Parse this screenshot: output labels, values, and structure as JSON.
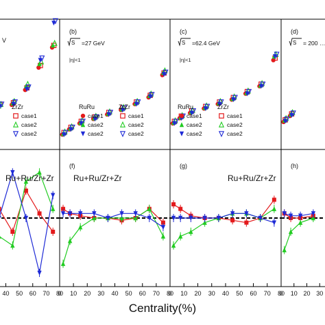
{
  "figure": {
    "xlabel": "Centrality(%)",
    "legend_header_ruru": "RuRu",
    "legend_header_zrzr": "ZrZr",
    "legend_rows": [
      "case1",
      "case2",
      "case2"
    ],
    "legend_header_ruru_2": "RuRu",
    "legend_header_zrzr_2": "ZrZr",
    "colors": {
      "case1": "#e31a1c",
      "case2_green": "#22cc22",
      "case2_blue": "#1e2ad6",
      "case1_open": "#e31a1c"
    }
  },
  "chart_data": [
    {
      "type": "scatter",
      "panel": "a",
      "title": "V",
      "x": [
        5,
        15,
        25,
        35,
        45,
        55,
        65,
        75
      ],
      "series": [
        {
          "name": "RuRu case1",
          "values": [
            null,
            0.9,
            0.91,
            0.93,
            0.95,
            1.15,
            1.45,
            1.72
          ]
        },
        {
          "name": "RuRu case2",
          "values": [
            null,
            0.9,
            0.9,
            0.93,
            0.97,
            1.2,
            1.5,
            1.75
          ]
        },
        {
          "name": "RuRu case2",
          "values": [
            null,
            0.9,
            0.91,
            0.93,
            0.96,
            1.16,
            1.55,
            2.05
          ]
        }
      ]
    },
    {
      "type": "scatter",
      "panel": "b",
      "title": "(b)",
      "energy": "=27 GeV",
      "eta": "|η|<1",
      "x": [
        2.5,
        7.5,
        15,
        25,
        35,
        45,
        55,
        65,
        75
      ],
      "series": [
        {
          "name": "RuRu case1",
          "values": [
            0.55,
            0.62,
            0.7,
            0.76,
            0.82,
            0.88,
            0.96,
            1.05,
            1.35
          ]
        },
        {
          "name": "RuRu case2",
          "values": [
            0.56,
            0.63,
            0.71,
            0.77,
            0.83,
            0.89,
            0.97,
            1.07,
            1.38
          ]
        },
        {
          "name": "RuRu case2",
          "values": [
            0.55,
            0.62,
            0.7,
            0.76,
            0.82,
            0.88,
            0.96,
            1.06,
            1.36
          ]
        }
      ]
    },
    {
      "type": "scatter",
      "panel": "c",
      "title": "(c)",
      "energy": "=62.4 GeV",
      "eta": "|η|<1",
      "x": [
        2.5,
        7.5,
        15,
        25,
        35,
        45,
        55,
        65,
        75
      ],
      "series": [
        {
          "name": "RuRu case1",
          "values": [
            0.7,
            0.77,
            0.84,
            0.9,
            0.96,
            1.02,
            1.1,
            1.2,
            1.55
          ]
        },
        {
          "name": "RuRu case2",
          "values": [
            0.71,
            0.78,
            0.85,
            0.91,
            0.97,
            1.03,
            1.11,
            1.21,
            1.6
          ]
        },
        {
          "name": "RuRu case2",
          "values": [
            0.7,
            0.77,
            0.84,
            0.9,
            0.96,
            1.02,
            1.1,
            1.2,
            1.6
          ]
        }
      ]
    },
    {
      "type": "scatter",
      "panel": "d",
      "title": "(d)",
      "energy": "= 200 …",
      "x": [
        2.5,
        7.5
      ],
      "series": [
        {
          "name": "RuRu case1",
          "values": [
            0.72,
            0.8
          ]
        },
        {
          "name": "RuRu case2",
          "values": [
            0.74,
            0.82
          ]
        },
        {
          "name": "RuRu case2",
          "values": [
            0.73,
            0.81
          ]
        }
      ]
    },
    {
      "type": "line",
      "panel": "e",
      "title": "Ru+Ru/Zr+Zr",
      "x": [
        5,
        15,
        25,
        35,
        45,
        55,
        65,
        75
      ],
      "xticks": [
        "40",
        "50",
        "60",
        "70",
        "80"
      ],
      "series": [
        {
          "name": "case1",
          "values": [
            1.0,
            0.99,
            0.98,
            1.02,
            0.97,
            1.06,
            1.01,
            0.97
          ]
        },
        {
          "name": "case2",
          "values": [
            1.0,
            1.01,
            1.0,
            0.96,
            0.94,
            1.08,
            1.1,
            1.02
          ]
        },
        {
          "name": "case2",
          "values": [
            1.0,
            1.02,
            1.01,
            1.0,
            1.1,
            1.0,
            0.88,
            1.05
          ]
        }
      ]
    },
    {
      "type": "line",
      "panel": "f",
      "title": "(f)",
      "label": "Ru+Ru/Zr+Zr",
      "x": [
        2.5,
        7.5,
        15,
        25,
        35,
        45,
        55,
        65,
        75
      ],
      "xticks": [
        "0",
        "10",
        "20",
        "30",
        "40",
        "50",
        "60",
        "70",
        "80"
      ],
      "series": [
        {
          "name": "case1",
          "values": [
            1.02,
            1.01,
            1.005,
            1.0,
            1.0,
            0.995,
            1.0,
            1.02,
            0.99
          ]
        },
        {
          "name": "case2",
          "values": [
            0.9,
            0.95,
            0.98,
            1.0,
            1.0,
            1.0,
            1.0,
            1.02,
            0.96
          ]
        },
        {
          "name": "case2",
          "values": [
            1.01,
            1.01,
            1.01,
            1.01,
            1.0,
            1.01,
            1.01,
            1.0,
            0.98
          ]
        }
      ]
    },
    {
      "type": "line",
      "panel": "g",
      "title": "(g)",
      "label": "Ru+Ru/Zr+Zr",
      "x": [
        2.5,
        7.5,
        15,
        25,
        35,
        45,
        55,
        65,
        75
      ],
      "xticks": [
        "0",
        "10",
        "20",
        "30",
        "40",
        "50",
        "60",
        "70",
        "80"
      ],
      "series": [
        {
          "name": "case1",
          "values": [
            1.03,
            1.02,
            1.005,
            1.0,
            1.0,
            0.995,
            0.99,
            1.0,
            1.04
          ]
        },
        {
          "name": "case2",
          "values": [
            0.94,
            0.96,
            0.97,
            0.99,
            1.0,
            1.01,
            1.01,
            1.0,
            1.02
          ]
        },
        {
          "name": "case2",
          "values": [
            1.0,
            1.0,
            1.0,
            1.0,
            1.0,
            1.01,
            1.01,
            1.0,
            0.99
          ]
        }
      ]
    },
    {
      "type": "line",
      "panel": "h",
      "title": "(h)",
      "x": [
        2.5,
        7.5,
        15,
        25
      ],
      "xticks": [
        "0",
        "10",
        "20",
        "30"
      ],
      "series": [
        {
          "name": "case1",
          "values": [
            1.01,
            1.0,
            1.0,
            1.005
          ]
        },
        {
          "name": "case2",
          "values": [
            0.93,
            0.97,
            0.99,
            1.0
          ]
        },
        {
          "name": "case2",
          "values": [
            1.01,
            1.005,
            1.005,
            1.01
          ]
        }
      ]
    }
  ]
}
